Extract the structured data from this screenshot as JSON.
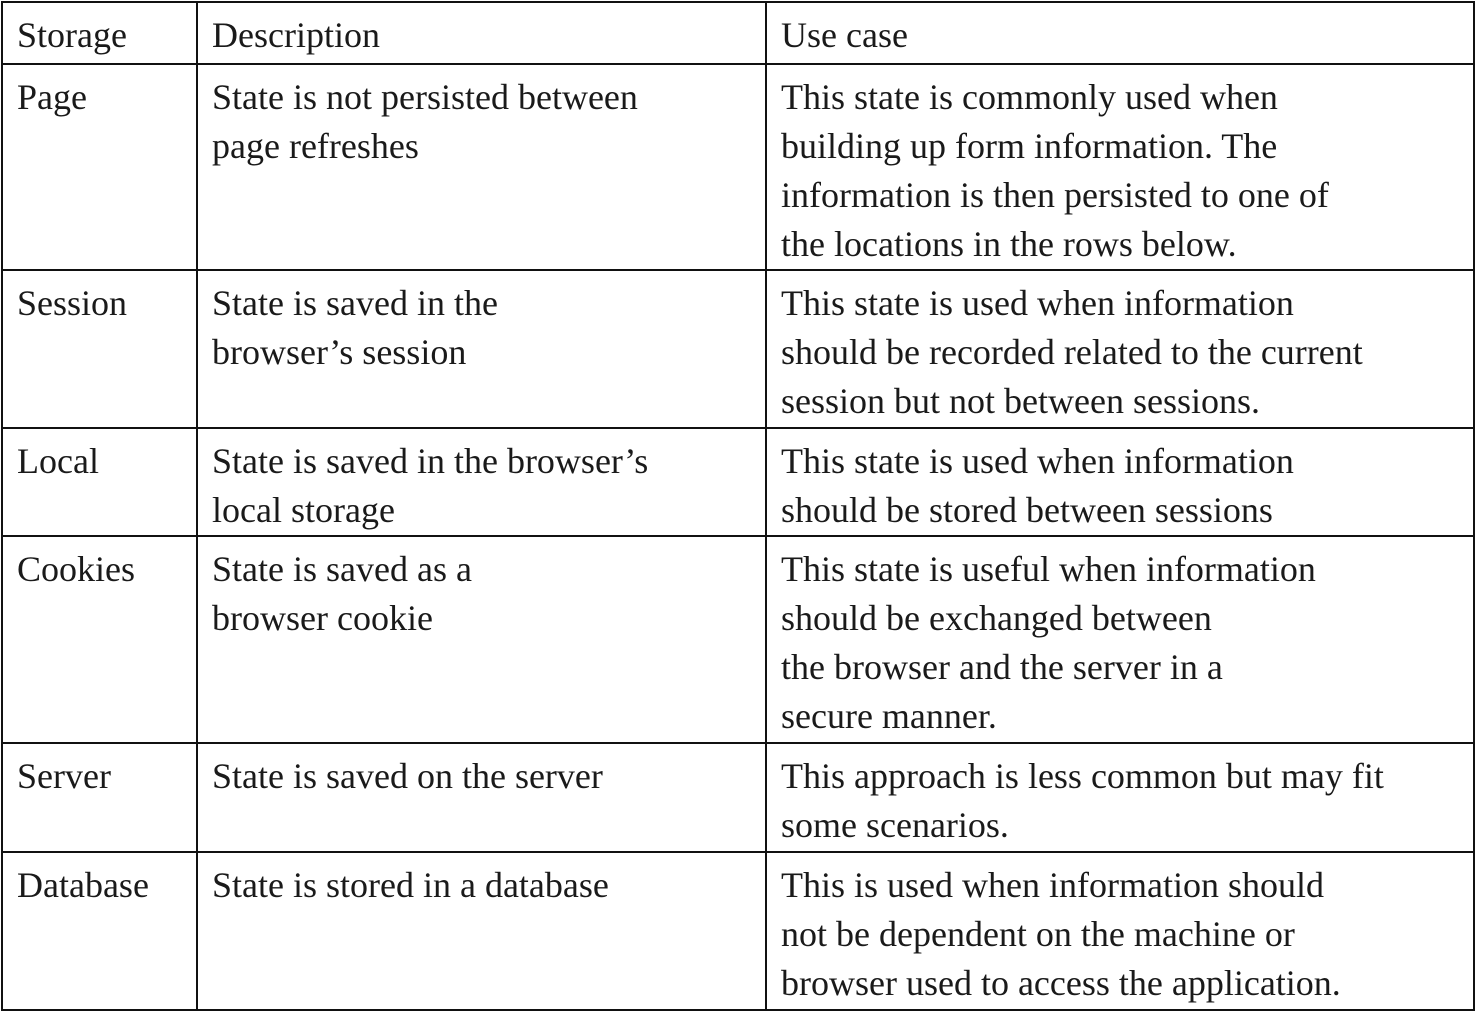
{
  "table": {
    "headers": [
      "Storage",
      "Description",
      "Use case"
    ],
    "rows": [
      {
        "storage": "Page",
        "description": "State is not persisted between\npage refreshes",
        "use_case": "This state is commonly used when\nbuilding up form information. The\ninformation is then persisted to one of\nthe locations in the rows below."
      },
      {
        "storage": "Session",
        "description": "State is saved in the\nbrowser’s session",
        "use_case": "This state is used when information\nshould be recorded related to the current\nsession but not between sessions."
      },
      {
        "storage": "Local",
        "description": "State is saved in the browser’s\nlocal storage",
        "use_case": "This state is used when information\nshould be stored between sessions"
      },
      {
        "storage": "Cookies",
        "description": "State is saved as a\nbrowser cookie",
        "use_case": "This state is useful when information\nshould be exchanged between\nthe browser and the server in a\nsecure manner."
      },
      {
        "storage": "Server",
        "description": "State is saved on the server",
        "use_case": "This approach is less common but may fit\nsome scenarios."
      },
      {
        "storage": "Database",
        "description": "State is stored in a database",
        "use_case": "This is used when information should\nnot be dependent on the machine or\nbrowser used to access the application."
      }
    ]
  }
}
